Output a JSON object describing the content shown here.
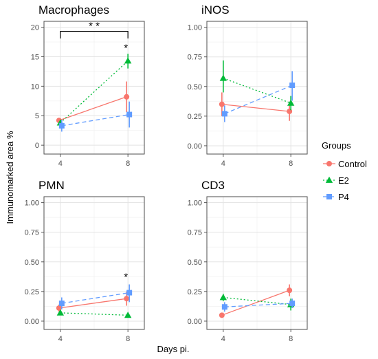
{
  "chart_data": {
    "type": "line",
    "xlabel": "Days pi.",
    "ylabel": "Immunomarked area %",
    "legend": {
      "title": "Groups",
      "position": "right",
      "entries": [
        {
          "name": "Control",
          "color": "#f8766d",
          "marker": "circle",
          "dash": "solid"
        },
        {
          "name": "E2",
          "color": "#00ba38",
          "marker": "triangle",
          "dash": "dotted"
        },
        {
          "name": "P4",
          "color": "#619cff",
          "marker": "square",
          "dash": "dashed"
        }
      ]
    },
    "grid": true,
    "x": [
      4,
      8
    ],
    "x_tick_labels": [
      "4",
      "8"
    ],
    "panels": [
      {
        "title": "Macrophages",
        "ylim": [
          -1.5,
          21
        ],
        "yticks": [
          0,
          5,
          10,
          15,
          20
        ],
        "ytick_labels": [
          "0",
          "5",
          "10",
          "15",
          "20"
        ],
        "series": [
          {
            "name": "Control",
            "values": [
              4.2,
              8.2
            ],
            "lower": [
              3.9,
              5.6
            ],
            "upper": [
              4.5,
              10.8
            ]
          },
          {
            "name": "E2",
            "values": [
              3.8,
              14.3
            ],
            "lower": [
              3.3,
              13.0
            ],
            "upper": [
              4.3,
              15.5
            ]
          },
          {
            "name": "P4",
            "values": [
              3.3,
              5.2
            ],
            "lower": [
              2.3,
              3.0
            ],
            "upper": [
              4.3,
              7.4
            ]
          }
        ],
        "annotations": [
          {
            "text": "*",
            "x": 8,
            "y": 16.6
          },
          {
            "text": "* *",
            "bracket": [
              4,
              8
            ],
            "bracket_y": 19.3,
            "bracket_drop": 1.2
          }
        ]
      },
      {
        "title": "iNOS",
        "ylim": [
          -0.07,
          1.05
        ],
        "yticks": [
          0,
          0.25,
          0.5,
          0.75,
          1.0
        ],
        "ytick_labels": [
          "0.00",
          "0.25",
          "0.50",
          "0.75",
          "1.00"
        ],
        "series": [
          {
            "name": "Control",
            "values": [
              0.35,
              0.29
            ],
            "lower": [
              0.25,
              0.21
            ],
            "upper": [
              0.45,
              0.37
            ]
          },
          {
            "name": "E2",
            "values": [
              0.57,
              0.36
            ],
            "lower": [
              0.45,
              0.3
            ],
            "upper": [
              0.72,
              0.42
            ]
          },
          {
            "name": "P4",
            "values": [
              0.27,
              0.51
            ],
            "lower": [
              0.2,
              0.38
            ],
            "upper": [
              0.34,
              0.63
            ]
          }
        ],
        "annotations": []
      },
      {
        "title": "PMN",
        "ylim": [
          -0.07,
          1.05
        ],
        "yticks": [
          0,
          0.25,
          0.5,
          0.75,
          1.0
        ],
        "ytick_labels": [
          "0.00",
          "0.25",
          "0.50",
          "0.75",
          "1.00"
        ],
        "series": [
          {
            "name": "Control",
            "values": [
              0.11,
              0.19
            ],
            "lower": [
              0.08,
              0.13
            ],
            "upper": [
              0.14,
              0.25
            ]
          },
          {
            "name": "E2",
            "values": [
              0.07,
              0.05
            ],
            "lower": [
              0.05,
              0.04
            ],
            "upper": [
              0.09,
              0.07
            ]
          },
          {
            "name": "P4",
            "values": [
              0.15,
              0.24
            ],
            "lower": [
              0.1,
              0.16
            ],
            "upper": [
              0.2,
              0.31
            ]
          }
        ],
        "annotations": [
          {
            "text": "*",
            "x": 8,
            "y": 0.38
          }
        ]
      },
      {
        "title": "CD3",
        "ylim": [
          -0.07,
          1.05
        ],
        "yticks": [
          0,
          0.25,
          0.5,
          0.75,
          1.0
        ],
        "ytick_labels": [
          "0.00",
          "0.25",
          "0.50",
          "0.75",
          "1.00"
        ],
        "series": [
          {
            "name": "Control",
            "values": [
              0.05,
              0.26
            ],
            "lower": [
              0.04,
              0.21
            ],
            "upper": [
              0.06,
              0.31
            ]
          },
          {
            "name": "E2",
            "values": [
              0.2,
              0.14
            ],
            "lower": [
              0.17,
              0.09
            ],
            "upper": [
              0.23,
              0.19
            ]
          },
          {
            "name": "P4",
            "values": [
              0.12,
              0.15
            ],
            "lower": [
              0.08,
              0.11
            ],
            "upper": [
              0.16,
              0.19
            ]
          }
        ],
        "annotations": []
      }
    ]
  }
}
